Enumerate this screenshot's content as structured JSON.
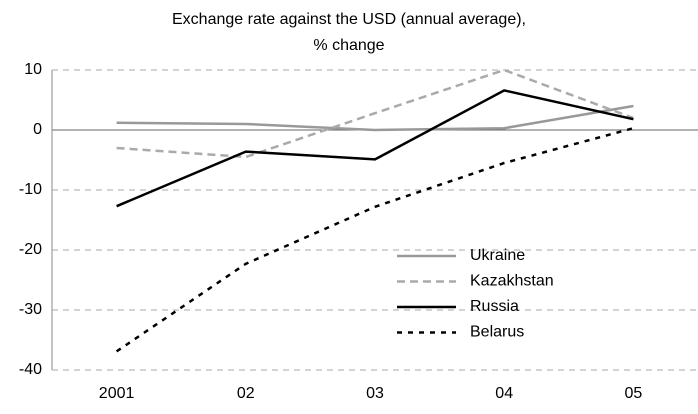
{
  "chart_data": {
    "type": "line",
    "title": [
      "Exchange rate against the USD (annual average),",
      "% change"
    ],
    "categories": [
      "2001",
      "02",
      "03",
      "04",
      "05"
    ],
    "series": [
      {
        "name": "Ukraine",
        "color": "#999999",
        "dash": "solid",
        "values": [
          1.2,
          1.0,
          0.0,
          0.3,
          4.0
        ]
      },
      {
        "name": "Kazakhstan",
        "color": "#aaaaaa",
        "dash": "dashed",
        "values": [
          -3.0,
          -4.5,
          2.8,
          10.0,
          2.0
        ]
      },
      {
        "name": "Russia",
        "color": "#000000",
        "dash": "solid",
        "values": [
          -12.7,
          -3.6,
          -4.9,
          6.6,
          1.8
        ]
      },
      {
        "name": "Belarus",
        "color": "#000000",
        "dash": "dashed",
        "values": [
          -36.9,
          -22.3,
          -12.8,
          -5.5,
          0.3
        ]
      }
    ],
    "ylim": [
      -40,
      10
    ],
    "yticks": [
      -40,
      -30,
      -20,
      -10,
      0,
      10
    ],
    "grid": true
  }
}
